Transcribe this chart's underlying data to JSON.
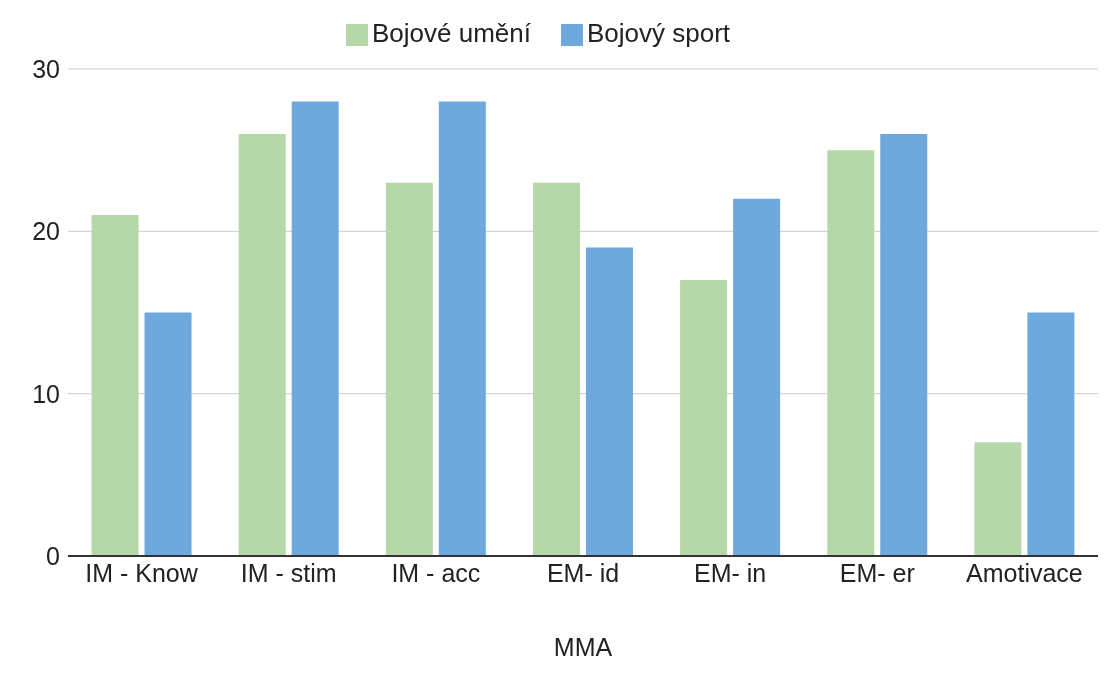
{
  "chart_data": {
    "type": "bar",
    "xlabel": "MMA",
    "categories": [
      "IM - Know",
      "IM - stim",
      "IM - acc",
      "EM- id",
      "EM- in",
      "EM- er",
      "Amotivace"
    ],
    "series": [
      {
        "name": "Bojové umění",
        "color": "#b6d7a8",
        "values": [
          21,
          26,
          23,
          23,
          17,
          25,
          7
        ]
      },
      {
        "name": "Bojový sport",
        "color": "#6fa8dc",
        "values": [
          15,
          28,
          28,
          19,
          22,
          26,
          15
        ]
      }
    ],
    "ylim": [
      0,
      30
    ],
    "yticks": [
      0,
      10,
      20,
      30
    ],
    "grid": "y",
    "legend": "top"
  }
}
